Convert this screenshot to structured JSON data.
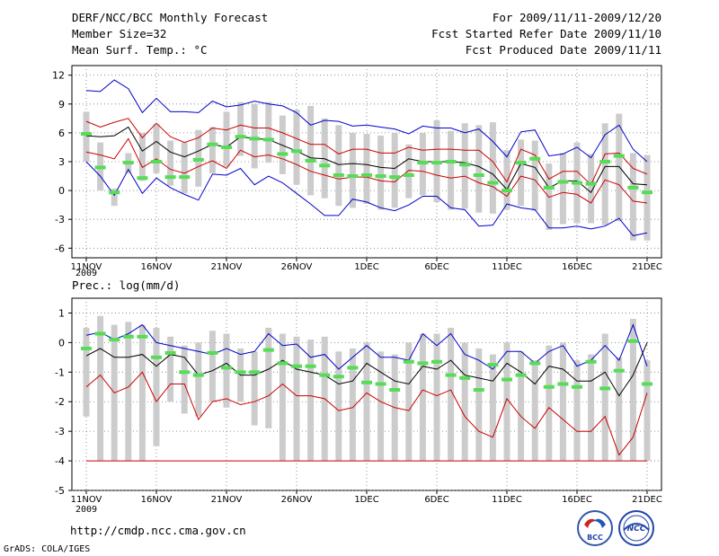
{
  "header": {
    "title": "DERF/NCC/BCC Monthly Forecast",
    "member_size": "Member Size=32",
    "variable": "Mean Surf. Temp.: °C",
    "period": "For 2009/11/11-2009/12/20",
    "started": "Fcst Started Refer Date 2009/11/10",
    "produced": "Fcst Produced Date 2009/11/11"
  },
  "footer": {
    "url": "http://cmdp.ncc.cma.gov.cn",
    "credit": "GrADS: COLA/IGES",
    "logo_left": "BCC",
    "logo_right": "NCC"
  },
  "colors": {
    "box": "#cccccc",
    "mean": "#000000",
    "spread": "#cc0000",
    "extreme": "#0000cc",
    "obs": "#55dd55",
    "grid": "#777777"
  },
  "x_axis": {
    "year": "2009",
    "tick_labels": [
      "11NOV",
      "16NOV",
      "21NOV",
      "26NOV",
      "1DEC",
      "6DEC",
      "11DEC",
      "16DEC",
      "21DEC"
    ],
    "tick_day_index": [
      0,
      5,
      10,
      15,
      20,
      25,
      30,
      35,
      40
    ]
  },
  "chart_data": [
    {
      "type": "line",
      "title": "Mean Surf. Temp.: °C",
      "ylim": [
        -7,
        13
      ],
      "yticks": [
        12,
        9,
        6,
        3,
        0,
        -3,
        -6
      ],
      "days": 39,
      "series": [
        {
          "name": "max",
          "values": [
            10.4,
            10.3,
            11.5,
            10.6,
            8.1,
            9.6,
            8.2,
            8.2,
            8.1,
            9.3,
            8.7,
            8.9,
            9.3,
            9.0,
            8.8,
            8.1,
            6.8,
            7.3,
            7.2,
            6.7,
            6.8,
            6.6,
            6.4,
            5.9,
            6.7,
            6.5,
            6.5,
            6.0,
            6.4,
            5.1,
            3.5,
            6.1,
            6.3,
            3.6,
            3.8,
            4.5,
            3.4,
            5.8,
            6.8,
            4.3,
            3.0
          ]
        },
        {
          "name": "upper",
          "values": [
            7.2,
            6.6,
            7.1,
            7.5,
            5.5,
            7.0,
            5.6,
            5.0,
            5.5,
            6.5,
            6.3,
            6.8,
            6.5,
            6.5,
            6.0,
            5.4,
            4.8,
            4.8,
            3.8,
            4.3,
            4.3,
            3.9,
            3.9,
            4.5,
            4.2,
            4.3,
            4.3,
            4.2,
            4.2,
            3.0,
            0.9,
            4.3,
            3.7,
            1.2,
            2.0,
            2.0,
            0.6,
            3.8,
            3.9,
            2.3,
            1.7
          ]
        },
        {
          "name": "mean",
          "values": [
            5.7,
            5.6,
            5.7,
            6.6,
            4.1,
            5.1,
            4.0,
            3.5,
            4.1,
            4.8,
            4.5,
            5.6,
            5.4,
            5.3,
            4.7,
            4.1,
            3.4,
            3.3,
            2.7,
            2.8,
            2.7,
            2.4,
            2.3,
            3.3,
            3.0,
            3.0,
            3.0,
            2.9,
            2.5,
            1.7,
            0.1,
            2.8,
            2.4,
            0.3,
            1.0,
            1.0,
            -0.2,
            2.5,
            2.5,
            0.7,
            0.6
          ]
        },
        {
          "name": "lower",
          "values": [
            4.0,
            3.7,
            3.3,
            5.4,
            2.4,
            3.3,
            2.2,
            1.8,
            2.5,
            3.1,
            2.3,
            4.2,
            3.5,
            3.7,
            3.3,
            2.7,
            2.0,
            1.6,
            1.2,
            1.4,
            1.4,
            1.0,
            0.9,
            2.1,
            2.0,
            1.6,
            1.3,
            1.5,
            0.8,
            0.4,
            -0.6,
            1.5,
            1.1,
            -0.7,
            -0.2,
            -0.4,
            -1.3,
            1.1,
            0.6,
            -1.1,
            -1.3
          ]
        },
        {
          "name": "min",
          "values": [
            3.0,
            1.5,
            -0.5,
            2.2,
            -0.3,
            1.3,
            0.3,
            -0.4,
            -1.0,
            1.7,
            1.6,
            2.3,
            0.6,
            1.5,
            0.8,
            -0.3,
            -1.4,
            -2.6,
            -2.6,
            -0.9,
            -1.2,
            -1.8,
            -2.1,
            -1.5,
            -0.6,
            -0.6,
            -1.8,
            -2.0,
            -3.7,
            -3.6,
            -1.4,
            -1.8,
            -2.0,
            -3.9,
            -3.9,
            -3.7,
            -4.0,
            -3.7,
            -2.9,
            -4.7,
            -4.4
          ]
        },
        {
          "name": "observed",
          "values": [
            5.9,
            2.4,
            -0.2,
            2.9,
            1.3,
            3.0,
            1.4,
            1.4,
            3.2,
            4.8,
            4.5,
            5.6,
            5.4,
            5.3,
            3.8,
            4.1,
            3.1,
            2.6,
            1.6,
            1.5,
            1.6,
            1.5,
            1.4,
            1.6,
            2.9,
            2.9,
            3.0,
            2.7,
            1.6,
            0.8,
            0.0,
            2.9,
            3.3,
            0.3,
            0.9,
            0.8,
            0.7,
            3.0,
            3.6,
            0.3,
            -0.2
          ]
        },
        {
          "name": "box_high",
          "values": [
            8.2,
            5.0,
            0.2,
            3.9,
            6.0,
            6.9,
            5.2,
            5.0,
            6.3,
            6.6,
            8.2,
            9.2,
            9.0,
            9.2,
            7.8,
            8.4,
            8.8,
            7.5,
            6.8,
            6.0,
            5.9,
            5.7,
            6.0,
            4.8,
            6.0,
            7.3,
            6.2,
            7.0,
            6.8,
            7.1,
            4.2,
            5.3,
            5.2,
            2.8,
            3.9,
            5.0,
            3.8,
            7.0,
            8.0,
            3.9,
            3.7
          ]
        },
        {
          "name": "box_low",
          "values": [
            3.0,
            0.0,
            -1.6,
            1.8,
            1.0,
            1.8,
            0.5,
            -0.3,
            0.4,
            1.8,
            2.5,
            3.6,
            2.3,
            2.9,
            1.7,
            0.6,
            -0.5,
            -0.8,
            -1.6,
            -1.8,
            -1.4,
            -2.0,
            -1.8,
            -0.8,
            -0.5,
            -1.2,
            -2.0,
            -1.9,
            -2.3,
            -2.4,
            -2.0,
            -1.6,
            -2.1,
            -4.1,
            -3.5,
            -3.4,
            -3.4,
            -3.6,
            -3.2,
            -5.2,
            -5.2
          ]
        }
      ]
    },
    {
      "type": "line",
      "title": "Prec.: log(mm/d)",
      "ylim": [
        -5,
        1.5
      ],
      "yticks": [
        1,
        0,
        -1,
        -2,
        -3,
        -4,
        -5
      ],
      "days": 39,
      "series": [
        {
          "name": "max",
          "values": [
            0.25,
            0.35,
            0.1,
            0.3,
            0.6,
            0.0,
            -0.1,
            -0.2,
            -0.3,
            -0.4,
            -0.2,
            -0.4,
            -0.3,
            0.3,
            -0.1,
            -0.05,
            -0.5,
            -0.4,
            -0.9,
            -0.5,
            -0.1,
            -0.5,
            -0.5,
            -0.6,
            0.3,
            -0.1,
            0.3,
            -0.4,
            -0.6,
            -0.9,
            -0.3,
            -0.3,
            -0.7,
            -0.3,
            -0.1,
            -0.8,
            -0.6,
            -0.1,
            -0.6,
            0.6,
            -0.8
          ]
        },
        {
          "name": "mean",
          "values": [
            -0.45,
            -0.2,
            -0.5,
            -0.5,
            -0.4,
            -0.8,
            -0.4,
            -0.5,
            -1.1,
            -0.95,
            -0.7,
            -1.1,
            -1.1,
            -0.9,
            -0.6,
            -0.9,
            -1.0,
            -1.1,
            -1.4,
            -1.3,
            -0.7,
            -1.0,
            -1.3,
            -1.4,
            -0.8,
            -0.9,
            -0.6,
            -1.1,
            -1.2,
            -1.3,
            -0.7,
            -1.0,
            -1.4,
            -0.8,
            -0.9,
            -1.3,
            -1.3,
            -1.0,
            -1.8,
            -1.1,
            0.0
          ]
        },
        {
          "name": "lower",
          "values": [
            -1.5,
            -1.1,
            -1.7,
            -1.5,
            -1.0,
            -2.0,
            -1.4,
            -1.4,
            -2.6,
            -2.0,
            -1.9,
            -2.1,
            -2.0,
            -1.8,
            -1.4,
            -1.8,
            -1.8,
            -1.9,
            -2.3,
            -2.2,
            -1.7,
            -2.0,
            -2.2,
            -2.3,
            -1.6,
            -1.8,
            -1.6,
            -2.5,
            -3.0,
            -3.2,
            -1.9,
            -2.5,
            -2.9,
            -2.2,
            -2.6,
            -3.0,
            -3.0,
            -2.5,
            -3.8,
            -3.2,
            -1.7
          ]
        },
        {
          "name": "floor",
          "values": [
            -4.0,
            -4.0,
            -4.0,
            -4.0,
            -4.0,
            -4.0,
            -4.0,
            -4.0,
            -4.0,
            -4.0,
            -4.0,
            -4.0,
            -4.0,
            -4.0,
            -4.0,
            -4.0,
            -4.0,
            -4.0,
            -4.0,
            -4.0,
            -4.0,
            -4.0,
            -4.0,
            -4.0,
            -4.0,
            -4.0,
            -4.0,
            -4.0,
            -4.0,
            -4.0,
            -4.0,
            -4.0,
            -4.0,
            -4.0,
            -4.0,
            -4.0,
            -4.0,
            -4.0,
            -4.0,
            -4.0,
            -4.0
          ]
        },
        {
          "name": "observed",
          "values": [
            -0.2,
            0.3,
            0.1,
            0.2,
            0.2,
            -0.5,
            -0.35,
            -1.0,
            -1.1,
            -0.35,
            -0.85,
            -1.0,
            -1.0,
            -0.25,
            -0.7,
            -0.8,
            -0.8,
            -1.1,
            -1.15,
            -0.85,
            -1.35,
            -1.4,
            -1.6,
            -0.65,
            -0.7,
            -0.65,
            -1.1,
            -1.2,
            -1.6,
            -0.75,
            -1.25,
            -1.1,
            -0.7,
            -1.5,
            -1.4,
            -1.5,
            -0.65,
            -1.55,
            -0.95,
            0.05,
            -1.4
          ]
        },
        {
          "name": "box_high",
          "values": [
            0.5,
            0.9,
            0.6,
            0.7,
            0.6,
            0.5,
            0.2,
            -0.1,
            0.0,
            0.4,
            0.3,
            -0.2,
            -0.3,
            0.5,
            0.3,
            0.2,
            0.1,
            0.2,
            -0.3,
            -0.2,
            0.0,
            -0.3,
            -0.4,
            0.0,
            0.3,
            0.3,
            0.5,
            0.0,
            -0.2,
            -0.4,
            0.0,
            -0.3,
            -0.6,
            -0.1,
            0.0,
            -0.6,
            -0.4,
            0.3,
            -0.5,
            0.8,
            -0.6
          ]
        },
        {
          "name": "box_low",
          "values": [
            -2.5,
            -4.0,
            -4.0,
            -4.0,
            -4.0,
            -3.5,
            -2.0,
            -2.4,
            -2.5,
            -2.0,
            -2.2,
            -2.0,
            -2.8,
            -2.9,
            -4.0,
            -4.0,
            -4.0,
            -4.0,
            -4.0,
            -4.0,
            -4.0,
            -4.0,
            -4.0,
            -4.0,
            -4.0,
            -4.0,
            -4.0,
            -4.0,
            -4.0,
            -4.0,
            -4.0,
            -4.0,
            -4.0,
            -4.0,
            -4.0,
            -4.0,
            -4.0,
            -4.0,
            -4.0,
            -4.0,
            -4.0
          ]
        }
      ]
    }
  ]
}
